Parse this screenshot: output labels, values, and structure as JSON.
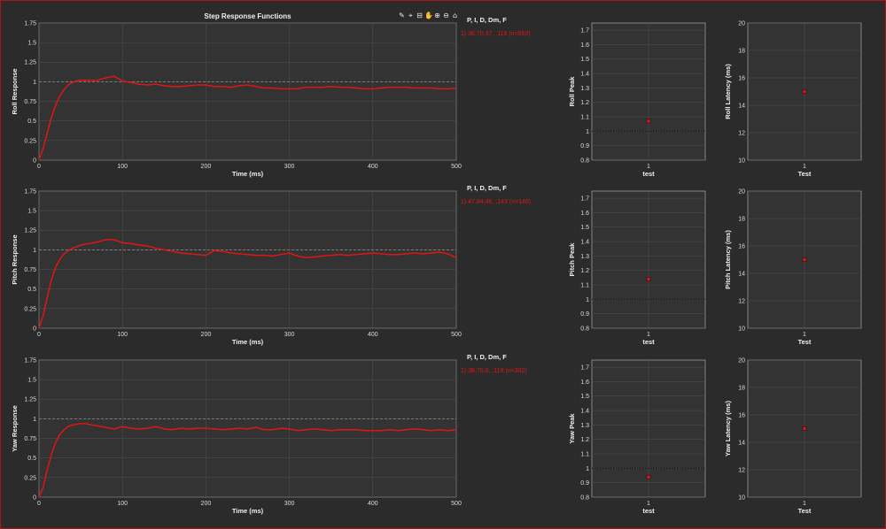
{
  "toolbar": {
    "icons": [
      "brush-icon",
      "data-tip-icon",
      "export-icon",
      "pan-icon",
      "zoom-in-icon",
      "zoom-out-icon",
      "home-icon"
    ],
    "glyphs": [
      "✎",
      "⌖",
      "⊟",
      "✋",
      "⊕",
      "⊖",
      "⌂"
    ]
  },
  "colors": {
    "series": "#e01515",
    "background": "#2b2b2b",
    "axes": "#333333",
    "grid": "#505050",
    "reference": "#9a9a9a"
  },
  "chart_data": [
    {
      "type": "line",
      "title": "Step Response Functions",
      "xlabel": "Time (ms)",
      "ylabel": "Roll Response",
      "xlim": [
        0,
        500
      ],
      "ylim": [
        0,
        1.75
      ],
      "xticks": [
        0,
        100,
        200,
        300,
        400,
        500
      ],
      "yticks": [
        0,
        0.25,
        0.5,
        0.75,
        1,
        1.25,
        1.5,
        1.75
      ],
      "yticklabels": [
        "0",
        "0.25",
        "0.5",
        "0.75",
        "1",
        "1.25",
        "1.5",
        "1.75"
      ],
      "reference_line": 1,
      "grid": true,
      "legend_title": "P, I, D, Dm, F",
      "legend_position": "top-right",
      "series": [
        {
          "name": "1) 36,70,37, ,116  (n=563)",
          "x": [
            0,
            5,
            10,
            15,
            20,
            25,
            30,
            35,
            40,
            45,
            50,
            60,
            70,
            80,
            90,
            100,
            110,
            120,
            130,
            140,
            150,
            160,
            170,
            180,
            190,
            200,
            210,
            220,
            230,
            240,
            250,
            260,
            270,
            280,
            290,
            300,
            310,
            320,
            330,
            340,
            350,
            360,
            370,
            380,
            390,
            400,
            410,
            420,
            430,
            440,
            450,
            460,
            470,
            480,
            490,
            500
          ],
          "y": [
            0,
            0.15,
            0.35,
            0.55,
            0.7,
            0.82,
            0.9,
            0.96,
            0.99,
            1.01,
            1.02,
            1.02,
            1.02,
            1.05,
            1.07,
            1.01,
            0.99,
            0.97,
            0.96,
            0.97,
            0.95,
            0.94,
            0.94,
            0.95,
            0.96,
            0.96,
            0.94,
            0.94,
            0.93,
            0.95,
            0.96,
            0.94,
            0.92,
            0.92,
            0.91,
            0.91,
            0.91,
            0.93,
            0.93,
            0.93,
            0.94,
            0.93,
            0.93,
            0.92,
            0.91,
            0.91,
            0.92,
            0.93,
            0.93,
            0.93,
            0.92,
            0.92,
            0.92,
            0.91,
            0.91,
            0.92
          ]
        }
      ]
    },
    {
      "type": "line",
      "xlabel": "Time (ms)",
      "ylabel": "Pitch Response",
      "xlim": [
        0,
        500
      ],
      "ylim": [
        0,
        1.75
      ],
      "xticks": [
        0,
        100,
        200,
        300,
        400,
        500
      ],
      "yticks": [
        0,
        0.25,
        0.5,
        0.75,
        1,
        1.25,
        1.5,
        1.75
      ],
      "yticklabels": [
        "0",
        "0.25",
        "0.5",
        "0.75",
        "1",
        "1.25",
        "1.5",
        "1.75"
      ],
      "reference_line": 1,
      "grid": true,
      "legend_title": "P, I, D, Dm, F",
      "legend_position": "top-right",
      "series": [
        {
          "name": "1) 47,84,46, ,143  (n=148)",
          "x": [
            0,
            5,
            10,
            15,
            20,
            25,
            30,
            35,
            40,
            45,
            50,
            55,
            60,
            70,
            80,
            90,
            100,
            110,
            120,
            130,
            140,
            150,
            160,
            170,
            180,
            190,
            200,
            210,
            220,
            230,
            240,
            250,
            260,
            270,
            280,
            290,
            300,
            310,
            320,
            330,
            340,
            350,
            360,
            370,
            380,
            390,
            400,
            410,
            420,
            430,
            440,
            450,
            460,
            470,
            480,
            490,
            500
          ],
          "y": [
            0,
            0.16,
            0.4,
            0.62,
            0.78,
            0.88,
            0.95,
            0.99,
            1.02,
            1.04,
            1.06,
            1.07,
            1.08,
            1.1,
            1.13,
            1.13,
            1.09,
            1.08,
            1.06,
            1.05,
            1.02,
            1.0,
            0.98,
            0.96,
            0.95,
            0.94,
            0.93,
            0.99,
            0.98,
            0.96,
            0.95,
            0.94,
            0.93,
            0.93,
            0.92,
            0.94,
            0.96,
            0.92,
            0.9,
            0.91,
            0.92,
            0.93,
            0.94,
            0.93,
            0.94,
            0.95,
            0.96,
            0.95,
            0.94,
            0.94,
            0.95,
            0.96,
            0.95,
            0.96,
            0.97,
            0.95,
            0.9
          ]
        }
      ]
    },
    {
      "type": "line",
      "xlabel": "Time (ms)",
      "ylabel": "Yaw Response",
      "xlim": [
        0,
        500
      ],
      "ylim": [
        0,
        1.75
      ],
      "xticks": [
        0,
        100,
        200,
        300,
        400,
        500
      ],
      "yticks": [
        0,
        0.25,
        0.5,
        0.75,
        1,
        1.25,
        1.5,
        1.75
      ],
      "yticklabels": [
        "0",
        "0.25",
        "0.5",
        "0.75",
        "1",
        "1.25",
        "1.5",
        "1.75"
      ],
      "reference_line": 1,
      "grid": true,
      "legend_title": "P, I, D, Dm, F",
      "legend_position": "top-right",
      "series": [
        {
          "name": "1) 38,70,0, ,119  (n=302)",
          "x": [
            0,
            5,
            10,
            15,
            20,
            25,
            30,
            35,
            40,
            45,
            50,
            55,
            60,
            70,
            80,
            90,
            100,
            110,
            120,
            130,
            140,
            150,
            160,
            170,
            180,
            190,
            200,
            210,
            220,
            230,
            240,
            250,
            260,
            270,
            280,
            290,
            300,
            310,
            320,
            330,
            340,
            350,
            360,
            370,
            380,
            390,
            400,
            410,
            420,
            430,
            440,
            450,
            460,
            470,
            480,
            490,
            500
          ],
          "y": [
            0,
            0.13,
            0.35,
            0.55,
            0.7,
            0.8,
            0.86,
            0.9,
            0.92,
            0.93,
            0.94,
            0.94,
            0.93,
            0.91,
            0.89,
            0.87,
            0.9,
            0.88,
            0.87,
            0.88,
            0.9,
            0.87,
            0.86,
            0.88,
            0.87,
            0.88,
            0.88,
            0.87,
            0.86,
            0.87,
            0.88,
            0.87,
            0.89,
            0.86,
            0.86,
            0.88,
            0.87,
            0.85,
            0.86,
            0.87,
            0.86,
            0.85,
            0.86,
            0.86,
            0.86,
            0.85,
            0.85,
            0.85,
            0.86,
            0.85,
            0.86,
            0.87,
            0.86,
            0.85,
            0.86,
            0.85,
            0.86
          ]
        }
      ]
    },
    {
      "type": "scatter",
      "xlabel": "test",
      "ylabel": "Roll Peak",
      "xlim": [
        0,
        2
      ],
      "ylim": [
        0.8,
        1.75
      ],
      "xticks": [
        1
      ],
      "xticklabels": [
        "1"
      ],
      "yticks": [
        0.8,
        0.9,
        1,
        1.1,
        1.2,
        1.3,
        1.4,
        1.5,
        1.6,
        1.7
      ],
      "yticklabels": [
        "0.8",
        "0.9",
        "1",
        "1.1",
        "1.2",
        "1.3",
        "1.4",
        "1.5",
        "1.6",
        "1.7"
      ],
      "reference_line": 1,
      "grid": true,
      "points": [
        {
          "x": 1,
          "y": 1.07
        }
      ]
    },
    {
      "type": "scatter",
      "xlabel": "Test",
      "ylabel": "Roll Latency (ms)",
      "xlim": [
        0,
        2
      ],
      "ylim": [
        10,
        20
      ],
      "xticks": [
        1
      ],
      "xticklabels": [
        "1"
      ],
      "yticks": [
        10,
        12,
        14,
        16,
        18,
        20
      ],
      "yticklabels": [
        "10",
        "12",
        "14",
        "16",
        "18",
        "20"
      ],
      "grid": true,
      "points": [
        {
          "x": 1,
          "y": 15
        }
      ]
    },
    {
      "type": "scatter",
      "xlabel": "test",
      "ylabel": "Pitch Peak",
      "xlim": [
        0,
        2
      ],
      "ylim": [
        0.8,
        1.75
      ],
      "xticks": [
        1
      ],
      "xticklabels": [
        "1"
      ],
      "yticks": [
        0.8,
        0.9,
        1,
        1.1,
        1.2,
        1.3,
        1.4,
        1.5,
        1.6,
        1.7
      ],
      "yticklabels": [
        "0.8",
        "0.9",
        "1",
        "1.1",
        "1.2",
        "1.3",
        "1.4",
        "1.5",
        "1.6",
        "1.7"
      ],
      "reference_line": 1,
      "grid": true,
      "points": [
        {
          "x": 1,
          "y": 1.14
        }
      ]
    },
    {
      "type": "scatter",
      "xlabel": "Test",
      "ylabel": "Pitch Latency (ms)",
      "xlim": [
        0,
        2
      ],
      "ylim": [
        10,
        20
      ],
      "xticks": [
        1
      ],
      "xticklabels": [
        "1"
      ],
      "yticks": [
        10,
        12,
        14,
        16,
        18,
        20
      ],
      "yticklabels": [
        "10",
        "12",
        "14",
        "16",
        "18",
        "20"
      ],
      "grid": true,
      "points": [
        {
          "x": 1,
          "y": 15
        }
      ]
    },
    {
      "type": "scatter",
      "xlabel": "test",
      "ylabel": "Yaw Peak",
      "xlim": [
        0,
        2
      ],
      "ylim": [
        0.8,
        1.75
      ],
      "xticks": [
        1
      ],
      "xticklabels": [
        "1"
      ],
      "yticks": [
        0.8,
        0.9,
        1,
        1.1,
        1.2,
        1.3,
        1.4,
        1.5,
        1.6,
        1.7
      ],
      "yticklabels": [
        "0.8",
        "0.9",
        "1",
        "1.1",
        "1.2",
        "1.3",
        "1.4",
        "1.5",
        "1.6",
        "1.7"
      ],
      "reference_line": 1,
      "grid": true,
      "points": [
        {
          "x": 1,
          "y": 0.94
        }
      ]
    },
    {
      "type": "scatter",
      "xlabel": "Test",
      "ylabel": "Yaw Latency (ms)",
      "xlim": [
        0,
        2
      ],
      "ylim": [
        10,
        20
      ],
      "xticks": [
        1
      ],
      "xticklabels": [
        "1"
      ],
      "yticks": [
        10,
        12,
        14,
        16,
        18,
        20
      ],
      "yticklabels": [
        "10",
        "12",
        "14",
        "16",
        "18",
        "20"
      ],
      "grid": true,
      "points": [
        {
          "x": 1,
          "y": 15
        }
      ]
    }
  ]
}
